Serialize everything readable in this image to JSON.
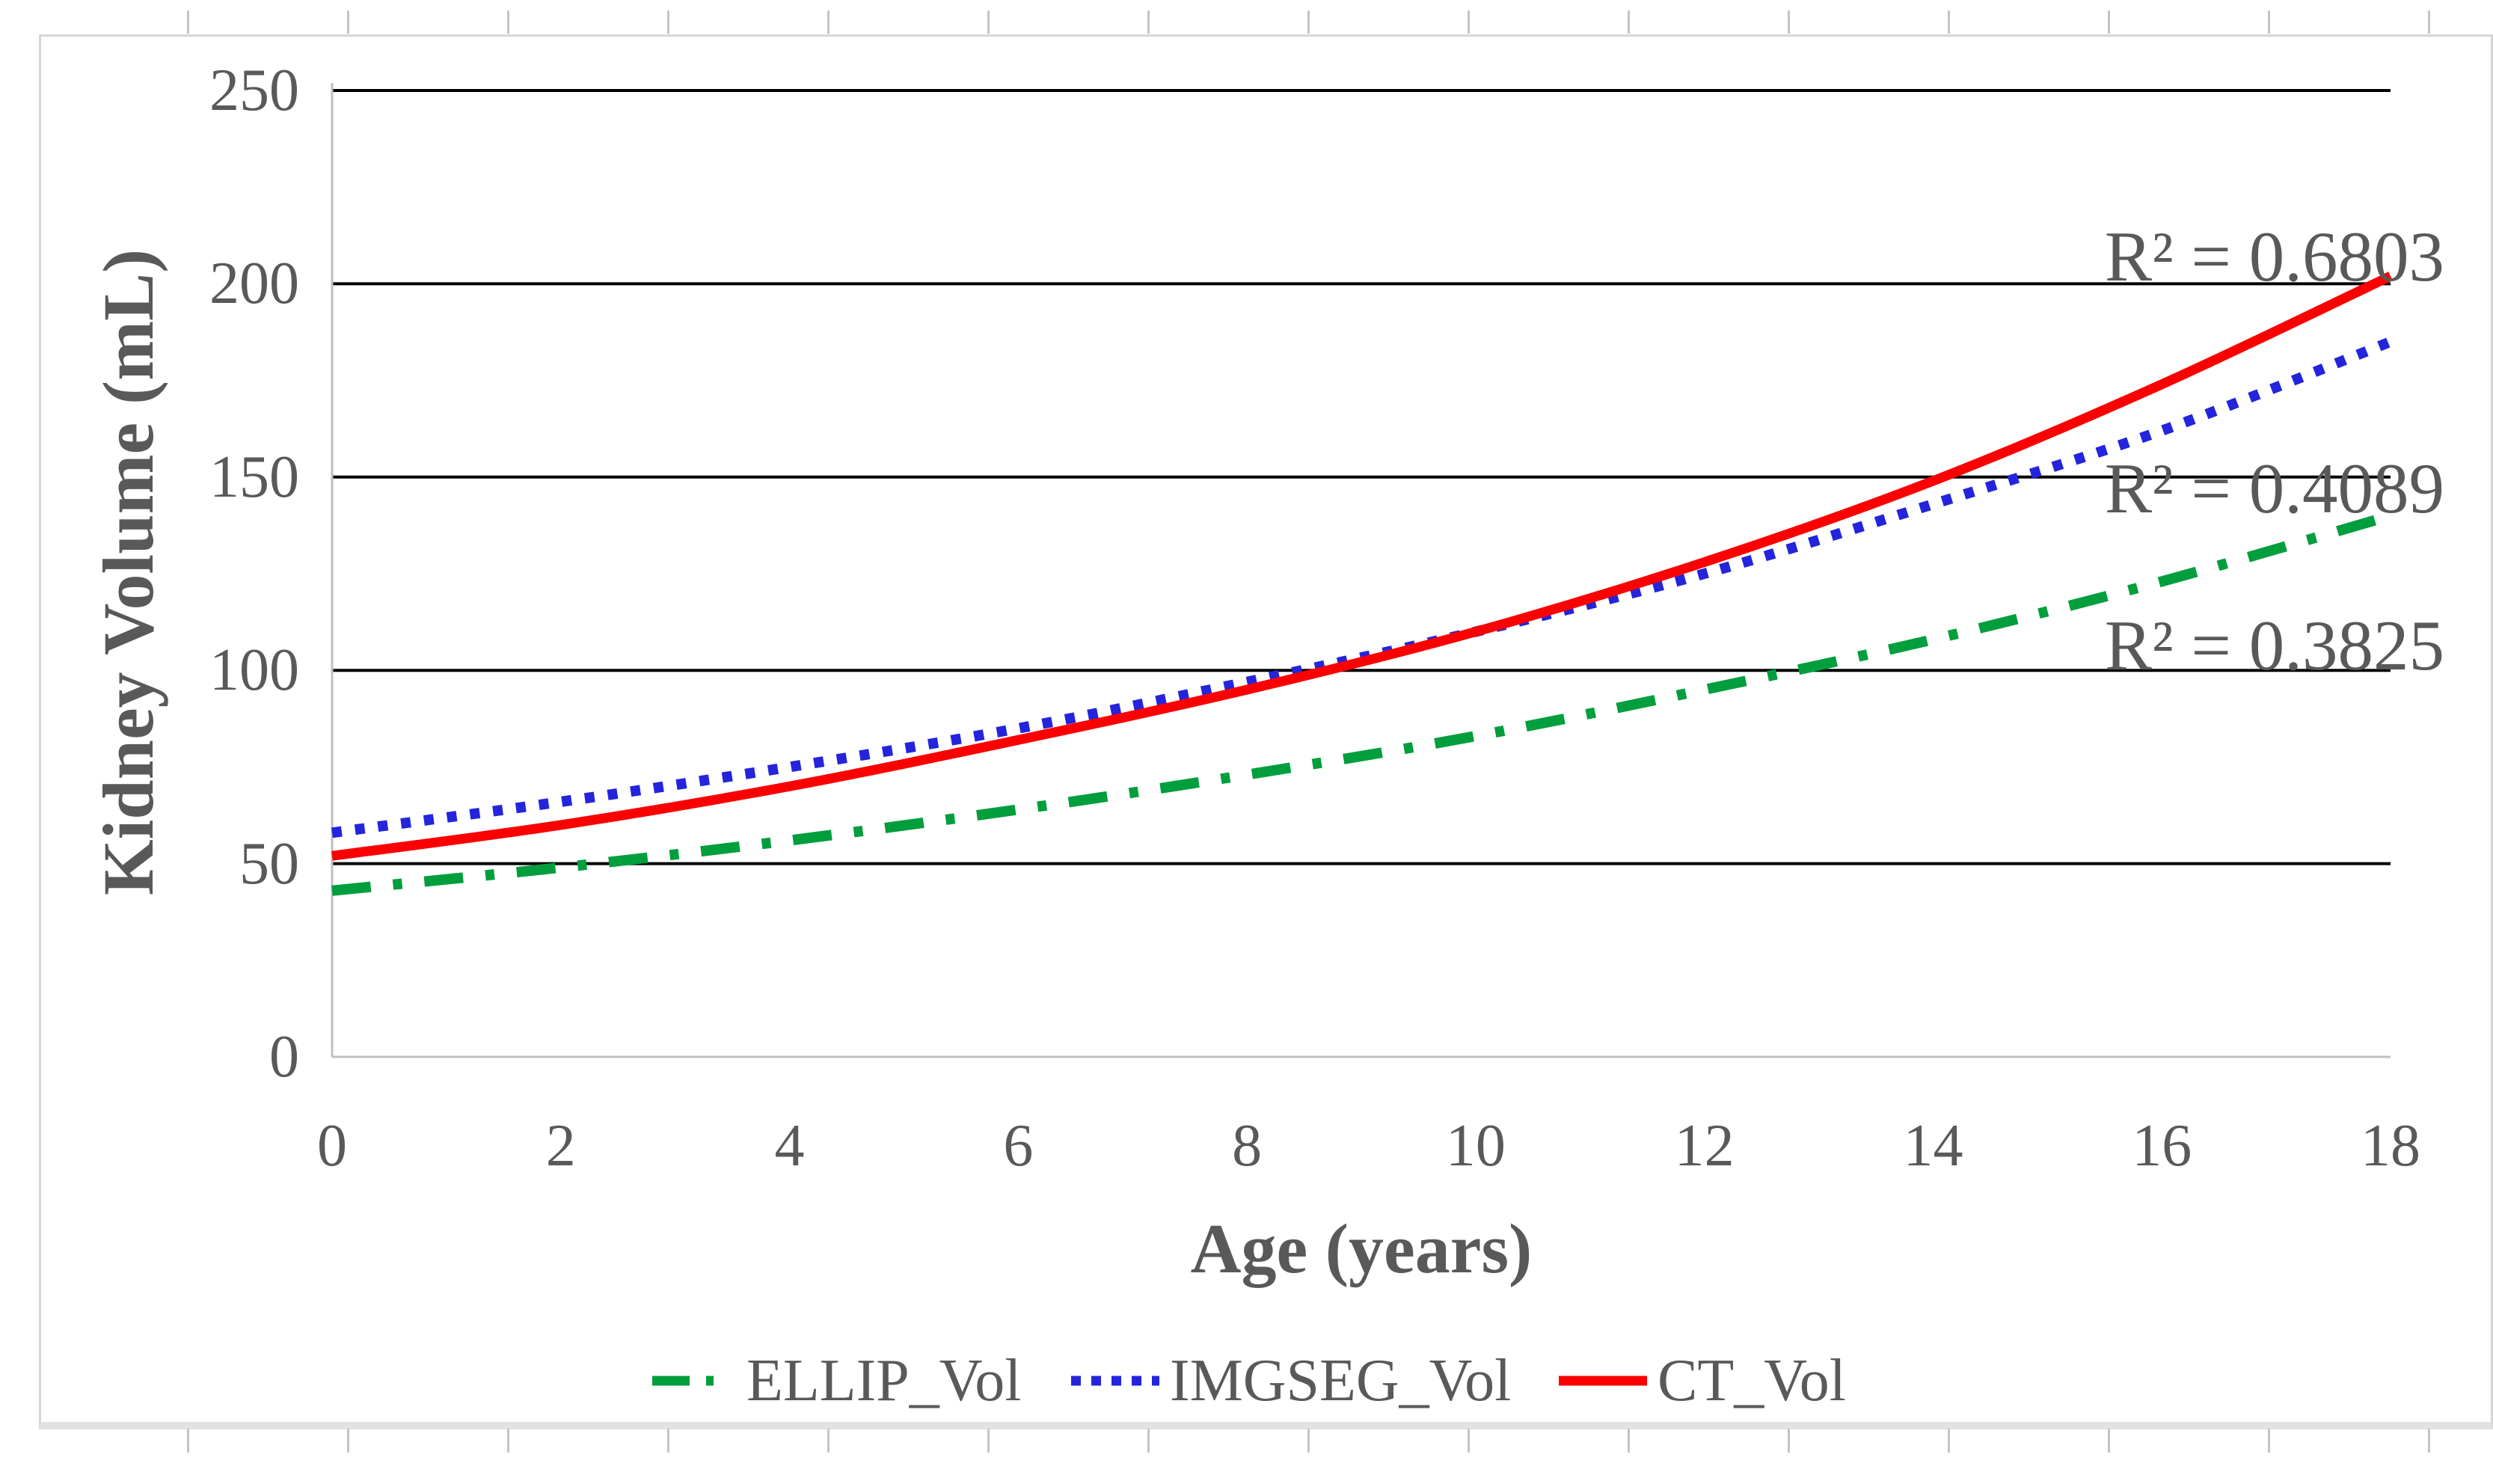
{
  "figure": {
    "background": "#ffffff",
    "frame_color": "#d6d6d6",
    "axis_text_color": "#595959",
    "gridline_color": "#000000",
    "plot_border_color": "#bfbfbf"
  },
  "chart_data": {
    "type": "line",
    "title": "",
    "xlabel": "Age (years)",
    "ylabel": "Kidney Volume (mL)",
    "xlim": [
      0,
      18
    ],
    "ylim": [
      0,
      250
    ],
    "x": [
      0,
      2,
      4,
      6,
      8,
      10,
      12,
      14,
      16,
      18
    ],
    "xticks": [
      "0",
      "2",
      "4",
      "6",
      "8",
      "10",
      "12",
      "14",
      "16",
      "18"
    ],
    "yticks": [
      "0",
      "50",
      "100",
      "150",
      "200",
      "250"
    ],
    "grid": "horizontal",
    "legend_position": "bottom",
    "series": [
      {
        "name": "ELLIP_Vol",
        "color": "#009E3D",
        "style": "dash-dot",
        "values": [
          43,
          49,
          56,
          64,
          73,
          83,
          95,
          108,
          123,
          140
        ]
      },
      {
        "name": "IMGSEG_Vol",
        "color": "#2424DC",
        "style": "dotted",
        "values": [
          58,
          66,
          75,
          85,
          97,
          110,
          125,
          143,
          162,
          185
        ]
      },
      {
        "name": "CT_Vol",
        "color": "#FA0000",
        "style": "solid",
        "values": [
          52,
          60,
          70,
          82,
          95,
          110,
          128,
          149,
          174,
          202
        ]
      }
    ],
    "annotations": [
      {
        "text": "R² = 0.6803",
        "series": "CT_Vol",
        "x": 18.45,
        "y": 207.0
      },
      {
        "text": "R² = 0.4089",
        "series": "IMGSEG_Vol",
        "x": 18.45,
        "y": 147.0
      },
      {
        "text": "R² = 0.3825",
        "series": "ELLIP_Vol",
        "x": 18.45,
        "y": 106.5
      }
    ]
  }
}
